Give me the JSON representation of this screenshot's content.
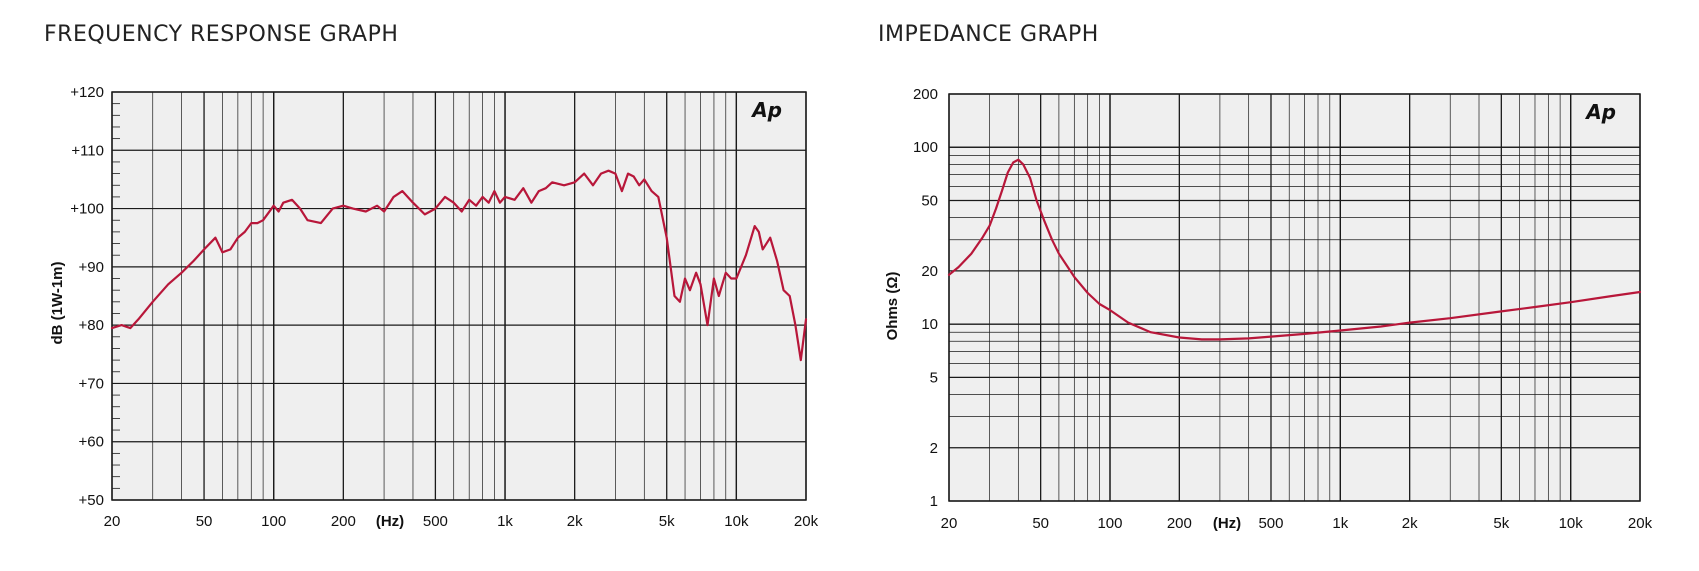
{
  "panels": {
    "frequency_response": {
      "title": "FREQUENCY RESPONSE GRAPH"
    },
    "impedance": {
      "title": "IMPEDANCE GRAPH"
    }
  },
  "colors": {
    "curve": "#b8173a",
    "grid": "#1a1a1a",
    "plot_bg": "#efefef"
  },
  "chart_data": [
    {
      "type": "line",
      "title": "FREQUENCY RESPONSE GRAPH",
      "xlabel": "(Hz)",
      "ylabel": "dB (1W-1m)",
      "x_scale": "log",
      "xlim": [
        20,
        20000
      ],
      "ylim": [
        50,
        120
      ],
      "x_ticks": [
        20,
        50,
        100,
        200,
        500,
        1000,
        2000,
        5000,
        10000,
        20000
      ],
      "x_tick_labels": [
        "20",
        "50",
        "100",
        "200",
        "500",
        "1k",
        "2k",
        "5k",
        "10k",
        "20k"
      ],
      "y_ticks": [
        50,
        60,
        70,
        80,
        90,
        100,
        110,
        120
      ],
      "y_tick_labels": [
        "+50",
        "+60",
        "+70",
        "+80",
        "+90",
        "+100",
        "+110",
        "+120"
      ],
      "logo": "Ap",
      "grid": true,
      "series": [
        {
          "x": [
            20,
            22,
            24,
            26,
            30,
            35,
            40,
            45,
            50,
            56,
            60,
            65,
            70,
            75,
            80,
            85,
            90,
            100,
            105,
            110,
            120,
            130,
            140,
            160,
            180,
            200,
            220,
            250,
            280,
            300,
            330,
            360,
            400,
            450,
            500,
            550,
            600,
            650,
            700,
            750,
            800,
            850,
            900,
            950,
            1000,
            1100,
            1200,
            1300,
            1400,
            1500,
            1600,
            1800,
            2000,
            2200,
            2400,
            2600,
            2800,
            3000,
            3200,
            3400,
            3600,
            3800,
            4000,
            4300,
            4600,
            5000,
            5400,
            5700,
            6000,
            6300,
            6700,
            7000,
            7500,
            8000,
            8400,
            9000,
            9500,
            10000,
            11000,
            12000,
            12500,
            13000,
            14000,
            15000,
            16000,
            17000,
            18000,
            19000,
            20000
          ],
          "y": [
            79.5,
            80,
            79.5,
            81,
            84,
            87,
            89,
            91,
            93,
            95,
            92.5,
            93,
            95,
            96,
            97.5,
            97.5,
            98,
            100.5,
            99.5,
            101,
            101.5,
            100,
            98,
            97.5,
            100,
            100.5,
            100,
            99.5,
            100.5,
            99.5,
            102,
            103,
            101,
            99,
            100,
            102,
            101,
            99.5,
            101.5,
            100.5,
            102,
            101,
            103,
            101,
            102,
            101.5,
            103.5,
            101,
            103,
            103.5,
            104.5,
            104,
            104.5,
            106,
            104,
            106,
            106.5,
            106,
            103,
            106,
            105.5,
            104,
            105,
            103,
            102,
            95,
            85,
            84,
            88,
            86,
            89,
            87,
            80,
            88,
            85,
            89,
            88,
            88,
            92,
            97,
            96,
            93,
            95,
            91,
            86,
            85,
            80,
            74,
            81
          ]
        }
      ]
    },
    {
      "type": "line",
      "title": "IMPEDANCE GRAPH",
      "xlabel": "(Hz)",
      "ylabel": "Ohms (Ω)",
      "x_scale": "log",
      "y_scale": "log",
      "xlim": [
        20,
        20000
      ],
      "ylim": [
        1,
        200
      ],
      "x_ticks": [
        20,
        50,
        100,
        200,
        500,
        1000,
        2000,
        5000,
        10000,
        20000
      ],
      "x_tick_labels": [
        "20",
        "50",
        "100",
        "200",
        "500",
        "1k",
        "2k",
        "5k",
        "10k",
        "20k"
      ],
      "y_ticks": [
        1,
        2,
        5,
        10,
        20,
        50,
        100,
        200
      ],
      "y_tick_labels": [
        "1",
        "2",
        "5",
        "10",
        "20",
        "50",
        "100",
        "200"
      ],
      "logo": "Ap",
      "grid": true,
      "series": [
        {
          "x": [
            20,
            22,
            25,
            28,
            30,
            32,
            34,
            36,
            38,
            40,
            42,
            45,
            48,
            52,
            56,
            60,
            70,
            80,
            90,
            100,
            120,
            150,
            200,
            250,
            300,
            400,
            500,
            700,
            1000,
            1500,
            2000,
            3000,
            5000,
            7000,
            10000,
            15000,
            20000
          ],
          "y": [
            19,
            21,
            25,
            31,
            36,
            45,
            57,
            72,
            82,
            85,
            80,
            67,
            50,
            38,
            30,
            25,
            18.5,
            15,
            13,
            12,
            10.2,
            9,
            8.4,
            8.2,
            8.2,
            8.3,
            8.5,
            8.8,
            9.2,
            9.7,
            10.2,
            10.8,
            11.8,
            12.5,
            13.3,
            14.4,
            15.2
          ]
        }
      ]
    }
  ]
}
